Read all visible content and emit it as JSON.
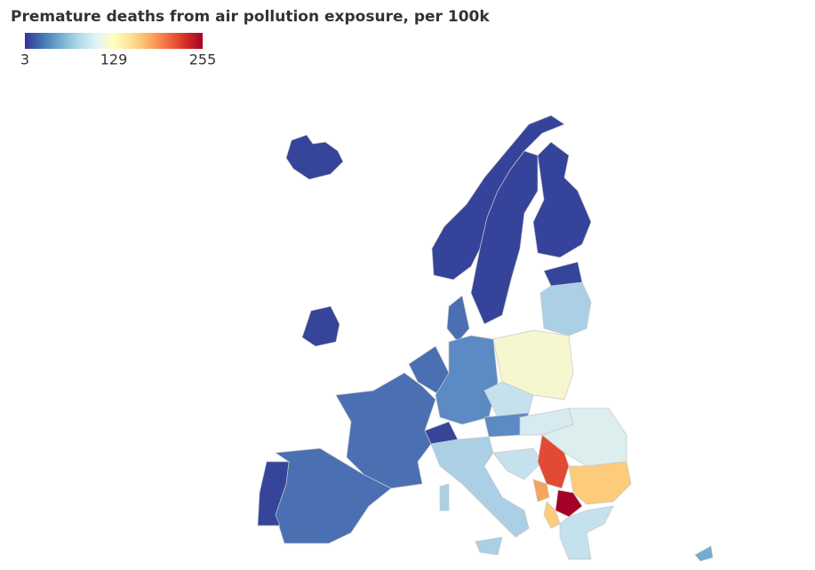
{
  "title": "Premature deaths from air pollution exposure, per 100k",
  "colorbar": {
    "range": [
      3,
      255
    ],
    "ticks": [
      3,
      129,
      255
    ],
    "colors": [
      "#313695",
      "#4575b4",
      "#74add1",
      "#abd9e9",
      "#e0f3f8",
      "#ffffbf",
      "#fee090",
      "#fdae61",
      "#f46d43",
      "#d73027",
      "#a50026"
    ]
  }
}
